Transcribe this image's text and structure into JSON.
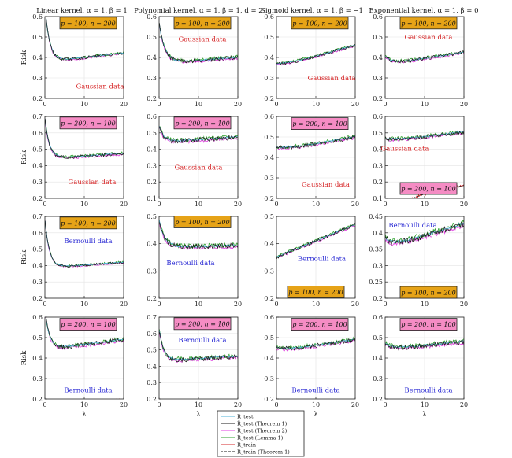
{
  "chart_data": {
    "type": "line",
    "xlabel": "λ",
    "ylabel": "Risk",
    "x_ticks": [
      0,
      10,
      20
    ],
    "xlim": [
      0,
      20
    ],
    "grid": true,
    "column_titles": [
      "Linear kernel, α = 1, β = 1",
      "Polynomial kernel, α = 1, β = 1, d = 2",
      "Sigmoid kernel, α = 1, β = −1",
      "Exponential kernel, α = 1, β = 0"
    ],
    "legend": {
      "placement": "bottom-center",
      "entries": [
        {
          "label": "R_test",
          "color": "#4fb3d9",
          "style": "solid"
        },
        {
          "label": "R̄_test (Theorem 1)",
          "color": "#1a1a1a",
          "style": "solid"
        },
        {
          "label": "R̂_test (Theorem 2)",
          "color": "#e040e0",
          "style": "solid"
        },
        {
          "label": "R̂_test (Lemma 1)",
          "color": "#2ca02c",
          "style": "solid"
        },
        {
          "label": "R_train",
          "color": "#d62728",
          "style": "solid"
        },
        {
          "label": "R̄_train (Theorem 1)",
          "color": "#1a1a1a",
          "style": "dashed"
        }
      ]
    },
    "panels": [
      {
        "row": 0,
        "col": 0,
        "ylim": [
          0.2,
          0.6
        ],
        "yticks": [
          0.2,
          0.3,
          0.4,
          0.5,
          0.6
        ],
        "ylabel": "Risk",
        "box": {
          "text": "p = 100, n = 200",
          "color": "#e6a317",
          "x": 11,
          "y": 0.568
        },
        "data_label": {
          "text": "Gaussian data",
          "color": "#d62728",
          "x": 14,
          "y": 0.26
        },
        "test": {
          "a": 0.376,
          "b": 0.275,
          "k": 0.85,
          "c": 0.0023
        },
        "train": {
          "a": 0.2,
          "b": -0.16,
          "k": 0.135
        },
        "spread": 0.006,
        "train_dip": 0.06
      },
      {
        "row": 0,
        "col": 1,
        "ylim": [
          0.2,
          0.6
        ],
        "yticks": [
          0.2,
          0.3,
          0.4,
          0.5,
          0.6
        ],
        "ylabel": "",
        "box": {
          "text": "p = 100, n = 200",
          "color": "#e6a317",
          "x": 11,
          "y": 0.568
        },
        "data_label": {
          "text": "Gaussian data",
          "color": "#d62728",
          "x": 11,
          "y": 0.49
        },
        "test": {
          "a": 0.37,
          "b": 0.2,
          "k": 0.7,
          "c": 0.0015
        },
        "train": {
          "a": 0.16,
          "b": -0.19,
          "k": 0.085
        },
        "spread": 0.008,
        "train_dip": 0.07
      },
      {
        "row": 0,
        "col": 2,
        "ylim": [
          0.2,
          0.6
        ],
        "yticks": [
          0.2,
          0.3,
          0.4,
          0.5,
          0.6
        ],
        "ylabel": "",
        "box": {
          "text": "p = 100, n = 200",
          "color": "#e6a317",
          "x": 11,
          "y": 0.568
        },
        "data_label": {
          "text": "Gaussian data",
          "color": "#d62728",
          "x": 14,
          "y": 0.3
        },
        "test": {
          "a": 0.35,
          "b": 0.02,
          "k": 0.3,
          "c": 0.0055
        },
        "train": {
          "a": 0.17,
          "b": -0.26,
          "k": 0.12
        },
        "spread": 0.006,
        "train_dip": 0.04
      },
      {
        "row": 0,
        "col": 3,
        "ylim": [
          0.2,
          0.6
        ],
        "yticks": [
          0.2,
          0.3,
          0.4,
          0.5,
          0.6
        ],
        "ylabel": "",
        "box": {
          "text": "p = 100, n = 200",
          "color": "#e6a317",
          "x": 11,
          "y": 0.568
        },
        "data_label": {
          "text": "Gaussian data",
          "color": "#d62728",
          "x": 11,
          "y": 0.5
        },
        "test": {
          "a": 0.365,
          "b": 0.04,
          "k": 0.6,
          "c": 0.003
        },
        "train": {
          "a": 0.15,
          "b": -0.24,
          "k": 0.085
        },
        "spread": 0.007,
        "train_dip": 0.05
      },
      {
        "row": 1,
        "col": 0,
        "ylim": [
          0.2,
          0.7
        ],
        "yticks": [
          0.2,
          0.3,
          0.4,
          0.5,
          0.6,
          0.7
        ],
        "ylabel": "Risk",
        "box": {
          "text": "p = 200, n = 100",
          "color": "#f58cc4",
          "x": 11,
          "y": 0.66
        },
        "data_label": {
          "text": "Gaussian data",
          "color": "#d62728",
          "x": 12,
          "y": 0.3
        },
        "test": {
          "a": 0.44,
          "b": 0.25,
          "k": 0.9,
          "c": 0.0017
        },
        "train": {
          "a": 0.15,
          "b": -0.27,
          "k": 0.11
        },
        "spread": 0.008,
        "train_dip": 0.05
      },
      {
        "row": 1,
        "col": 1,
        "ylim": [
          0.1,
          0.6
        ],
        "yticks": [
          0.1,
          0.2,
          0.3,
          0.4,
          0.5,
          0.6
        ],
        "ylabel": "",
        "box": {
          "text": "p = 200, n = 100",
          "color": "#f58cc4",
          "x": 11,
          "y": 0.56
        },
        "data_label": {
          "text": "Gaussian data",
          "color": "#d62728",
          "x": 10,
          "y": 0.29
        },
        "test": {
          "a": 0.44,
          "b": 0.1,
          "k": 0.8,
          "c": 0.0017
        },
        "train": {
          "a": 0.12,
          "b": -0.19,
          "k": 0.1
        },
        "spread": 0.012,
        "train_dip": 0.06
      },
      {
        "row": 1,
        "col": 2,
        "ylim": [
          0.2,
          0.6
        ],
        "yticks": [
          0.2,
          0.3,
          0.4,
          0.5,
          0.6
        ],
        "ylabel": "",
        "box": {
          "text": "p = 200, n = 100",
          "color": "#f58cc4",
          "x": 11,
          "y": 0.565
        },
        "data_label": {
          "text": "Gaussian data",
          "color": "#d62728",
          "x": 12.5,
          "y": 0.27
        },
        "test": {
          "a": 0.43,
          "b": 0.02,
          "k": 0.3,
          "c": 0.0035
        },
        "train": {
          "a": 0.18,
          "b": -0.27,
          "k": 0.115
        },
        "spread": 0.008,
        "train_dip": 0.04
      },
      {
        "row": 1,
        "col": 3,
        "ylim": [
          0.1,
          0.6
        ],
        "yticks": [
          0.1,
          0.2,
          0.3,
          0.4,
          0.5,
          0.6
        ],
        "ylabel": "",
        "box": {
          "text": "p = 200, n = 100",
          "color": "#f58cc4",
          "x": 11,
          "y": 0.16
        },
        "data_label": {
          "text": "Gaussian data",
          "color": "#d62728",
          "x": 5,
          "y": 0.405
        },
        "test": {
          "a": 0.445,
          "b": 0.02,
          "k": 0.3,
          "c": 0.003
        },
        "train": {
          "a": 0.22,
          "b": -0.21,
          "k": 0.08
        },
        "spread": 0.01,
        "train_dip": 0.05
      },
      {
        "row": 2,
        "col": 0,
        "ylim": [
          0.2,
          0.7
        ],
        "yticks": [
          0.2,
          0.3,
          0.4,
          0.5,
          0.6,
          0.7
        ],
        "ylabel": "Risk",
        "box": {
          "text": "p = 100, n = 200",
          "color": "#e6a317",
          "x": 11,
          "y": 0.66
        },
        "data_label": {
          "text": "Bernoulli data",
          "color": "#2b2bd4",
          "x": 11,
          "y": 0.55
        },
        "test": {
          "a": 0.385,
          "b": 0.3,
          "k": 0.9,
          "c": 0.0017
        },
        "train": {
          "a": 0.14,
          "b": -0.17,
          "k": 0.12
        },
        "spread": 0.006,
        "train_dip": 0.05
      },
      {
        "row": 2,
        "col": 1,
        "ylim": [
          0.2,
          0.5
        ],
        "yticks": [
          0.2,
          0.3,
          0.4,
          0.5
        ],
        "ylabel": "",
        "box": {
          "text": "p = 100, n = 200",
          "color": "#e6a317",
          "x": 11,
          "y": 0.48
        },
        "data_label": {
          "text": "Bernoulli data",
          "color": "#2b2bd4",
          "x": 8,
          "y": 0.33
        },
        "test": {
          "a": 0.385,
          "b": 0.1,
          "k": 0.7,
          "c": 0.0004
        },
        "train": {
          "a": 0.13,
          "b": -0.14,
          "k": 0.065
        },
        "spread": 0.008,
        "train_dip": 0.05
      },
      {
        "row": 2,
        "col": 2,
        "ylim": [
          0.2,
          0.5
        ],
        "yticks": [
          0.2,
          0.3,
          0.4,
          0.5
        ],
        "ylabel": "",
        "box": {
          "text": "p = 100, n = 200",
          "color": "#e6a317",
          "x": 10,
          "y": 0.223
        },
        "data_label": {
          "text": "Bernoulli data",
          "color": "#2b2bd4",
          "x": 11.5,
          "y": 0.345
        },
        "test": {
          "a": 0.35,
          "b": 0.0,
          "k": 0.3,
          "c": 0.006
        },
        "train": {
          "a": 0.14,
          "b": -0.16,
          "k": 0.1
        },
        "spread": 0.005,
        "train_dip": 0.03
      },
      {
        "row": 2,
        "col": 3,
        "ylim": [
          0.2,
          0.45
        ],
        "yticks": [
          0.2,
          0.25,
          0.3,
          0.35,
          0.4,
          0.45
        ],
        "ylabel": "",
        "box": {
          "text": "p = 100, n = 200",
          "color": "#e6a317",
          "x": 11,
          "y": 0.218
        },
        "data_label": {
          "text": "Bernoulli data",
          "color": "#2b2bd4",
          "x": 7,
          "y": 0.424
        },
        "test": {
          "a": 0.355,
          "b": 0.03,
          "k": 0.6,
          "c": 0.0036
        },
        "train": {
          "a": 0.14,
          "b": -0.14,
          "k": 0.07
        },
        "spread": 0.008,
        "train_dip": 0.02
      },
      {
        "row": 3,
        "col": 0,
        "ylim": [
          0.2,
          0.6
        ],
        "yticks": [
          0.2,
          0.3,
          0.4,
          0.5,
          0.6
        ],
        "ylabel": "Risk",
        "box": {
          "text": "p = 200, n = 100",
          "color": "#f58cc4",
          "x": 11,
          "y": 0.565
        },
        "data_label": {
          "text": "Bernoulli data",
          "color": "#2b2bd4",
          "x": 11,
          "y": 0.245
        },
        "test": {
          "a": 0.44,
          "b": 0.2,
          "k": 0.9,
          "c": 0.0025
        },
        "train": {
          "a": 0.22,
          "b": -0.22,
          "k": 0.11
        },
        "spread": 0.009,
        "train_dip": 0.04
      },
      {
        "row": 3,
        "col": 1,
        "ylim": [
          0.2,
          0.7
        ],
        "yticks": [
          0.2,
          0.3,
          0.4,
          0.5,
          0.6,
          0.7
        ],
        "ylabel": "",
        "box": {
          "text": "p = 200, n = 100",
          "color": "#f58cc4",
          "x": 11,
          "y": 0.66
        },
        "data_label": {
          "text": "Bernoulli data",
          "color": "#2b2bd4",
          "x": 11,
          "y": 0.56
        },
        "test": {
          "a": 0.43,
          "b": 0.2,
          "k": 0.9,
          "c": 0.0015
        },
        "train": {
          "a": 0.12,
          "b": -0.23,
          "k": 0.09
        },
        "spread": 0.012,
        "train_dip": 0.05
      },
      {
        "row": 3,
        "col": 2,
        "ylim": [
          0.2,
          0.6
        ],
        "yticks": [
          0.2,
          0.3,
          0.4,
          0.5,
          0.6
        ],
        "ylabel": "",
        "box": {
          "text": "p = 200, n = 100",
          "color": "#f58cc4",
          "x": 11,
          "y": 0.565
        },
        "data_label": {
          "text": "Bernoulli data",
          "color": "#2b2bd4",
          "x": 10,
          "y": 0.245
        },
        "test": {
          "a": 0.43,
          "b": 0.02,
          "k": 0.3,
          "c": 0.003
        },
        "train": {
          "a": 0.2,
          "b": -0.25,
          "k": 0.13
        },
        "spread": 0.009,
        "train_dip": 0.04
      },
      {
        "row": 3,
        "col": 3,
        "ylim": [
          0.2,
          0.6
        ],
        "yticks": [
          0.2,
          0.3,
          0.4,
          0.5,
          0.6
        ],
        "ylabel": "",
        "box": {
          "text": "p = 200, n = 100",
          "color": "#f58cc4",
          "x": 11,
          "y": 0.565
        },
        "data_label": {
          "text": "Bernoulli data",
          "color": "#2b2bd4",
          "x": 11,
          "y": 0.245
        },
        "test": {
          "a": 0.44,
          "b": 0.03,
          "k": 0.5,
          "c": 0.002
        },
        "train": {
          "a": 0.16,
          "b": -0.21,
          "k": 0.08
        },
        "spread": 0.01,
        "train_dip": 0.05
      }
    ]
  }
}
